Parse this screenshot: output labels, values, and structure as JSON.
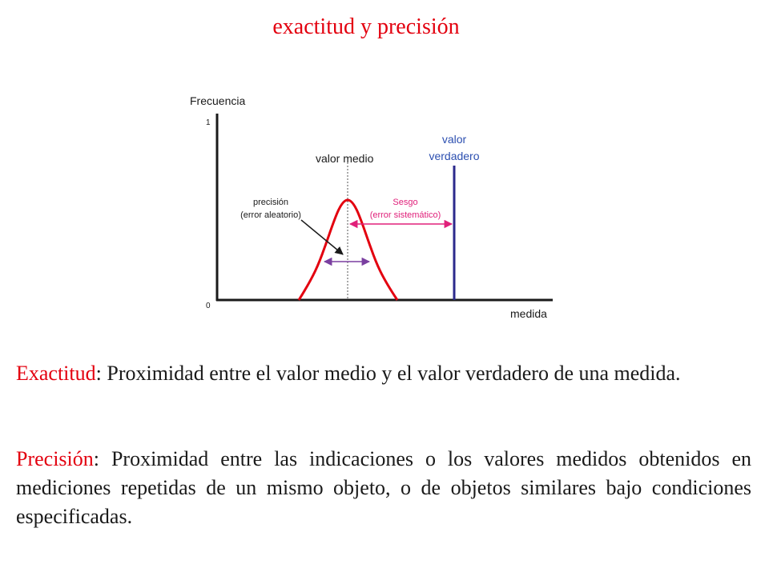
{
  "slide": {
    "title": "exactitud y precisión"
  },
  "diagram": {
    "y_axis_label": "Frecuencia",
    "x_axis_label": "medida",
    "y_tick_top": "1",
    "y_tick_bottom": "0",
    "mean_label": "valor medio",
    "true_value_label_line1": "valor",
    "true_value_label_line2": "verdadero",
    "precision_label_line1": "precisión",
    "precision_label_line2": "(error aleatorio)",
    "bias_label_line1": "Sesgo",
    "bias_label_line2": "(error sistemático)",
    "colors": {
      "curve": "#e3000f",
      "true_value_line": "#2c2a8c",
      "true_value_text": "#2c4fb0",
      "bias": "#e0207a",
      "precision_arrow": "#7a3fa0",
      "axis": "#1a1a1a"
    }
  },
  "definitions": {
    "exactitud": {
      "term": "Exactitud",
      "text": ": Proximidad entre el valor medio y el valor verdadero de una medida."
    },
    "precision": {
      "term": "Precisión",
      "text": ": Proximidad entre las indicaciones o los valores medidos obtenidos en mediciones repetidas de un mismo objeto, o de objetos similares bajo condiciones especificadas."
    }
  }
}
